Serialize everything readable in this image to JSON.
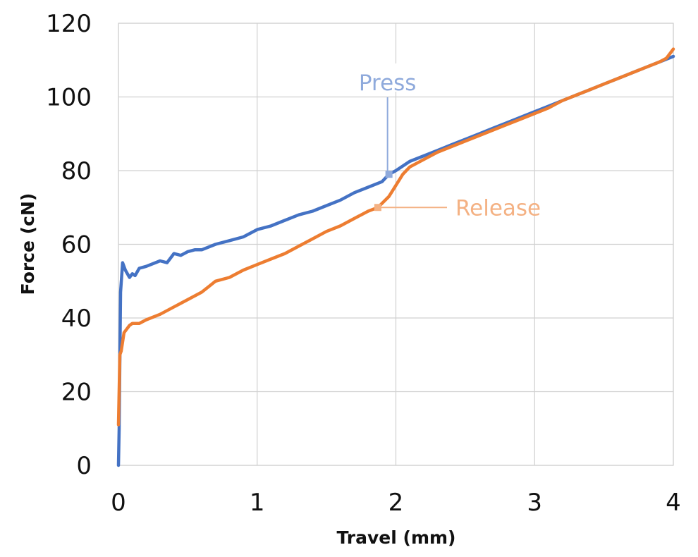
{
  "chart_data": {
    "type": "line",
    "title": "",
    "xlabel": "Travel (mm)",
    "ylabel": "Force (cN)",
    "xlim": [
      0,
      4
    ],
    "ylim": [
      0,
      120
    ],
    "x_ticks": [
      0,
      1,
      2,
      3,
      4
    ],
    "y_ticks": [
      0,
      20,
      40,
      60,
      80,
      100,
      120
    ],
    "grid": true,
    "legend": "none",
    "series": [
      {
        "name": "Press",
        "color": "#4472C4",
        "label_color": "#8FAADC",
        "label_position": "above",
        "marker": [
          1.95,
          79
        ],
        "x": [
          0.0,
          0.005,
          0.015,
          0.03,
          0.05,
          0.08,
          0.1,
          0.12,
          0.15,
          0.2,
          0.3,
          0.35,
          0.4,
          0.45,
          0.5,
          0.55,
          0.6,
          0.7,
          0.8,
          0.9,
          1.0,
          1.1,
          1.2,
          1.3,
          1.4,
          1.5,
          1.6,
          1.7,
          1.8,
          1.9,
          1.95,
          2.0,
          2.1,
          2.2,
          2.3,
          2.4,
          2.5,
          2.6,
          2.7,
          2.8,
          2.9,
          3.0,
          3.1,
          3.2,
          3.3,
          3.4,
          3.5,
          3.6,
          3.7,
          3.8,
          3.9,
          4.0
        ],
        "y": [
          0,
          10,
          47,
          55,
          53,
          51,
          52,
          51.5,
          53.5,
          54,
          55.5,
          55,
          57.5,
          57,
          58,
          58.5,
          58.5,
          60,
          61,
          62,
          64,
          65,
          66.5,
          68,
          69,
          70.5,
          72,
          74,
          75.5,
          77,
          79,
          80,
          82.5,
          84,
          85.5,
          87,
          88.5,
          90,
          91.5,
          93,
          94.5,
          96,
          97.5,
          99,
          100.5,
          102,
          103.5,
          105,
          106.5,
          108,
          109.5,
          111
        ]
      },
      {
        "name": "Release",
        "color": "#ED7D31",
        "label_color": "#F4B183",
        "label_position": "right",
        "marker": [
          1.87,
          70
        ],
        "x": [
          0.0,
          0.01,
          0.02,
          0.04,
          0.06,
          0.08,
          0.1,
          0.15,
          0.2,
          0.3,
          0.4,
          0.5,
          0.6,
          0.65,
          0.7,
          0.8,
          0.9,
          1.0,
          1.1,
          1.2,
          1.3,
          1.4,
          1.5,
          1.6,
          1.7,
          1.8,
          1.87,
          1.95,
          2.0,
          2.05,
          2.1,
          2.2,
          2.3,
          2.4,
          2.5,
          2.6,
          2.7,
          2.8,
          2.9,
          3.0,
          3.1,
          3.2,
          3.3,
          3.4,
          3.5,
          3.6,
          3.7,
          3.8,
          3.9,
          3.95,
          4.0
        ],
        "y": [
          11,
          30,
          31,
          36,
          37,
          38,
          38.5,
          38.5,
          39.5,
          41,
          43,
          45,
          47,
          48.5,
          50,
          51,
          53,
          54.5,
          56,
          57.5,
          59.5,
          61.5,
          63.5,
          65,
          67,
          69,
          70,
          73,
          76,
          79,
          81,
          83,
          85,
          86.5,
          88,
          89.5,
          91,
          92.5,
          94,
          95.5,
          97,
          99,
          100.5,
          102,
          103.5,
          105,
          106.5,
          108,
          109.5,
          110.5,
          113
        ]
      }
    ]
  }
}
